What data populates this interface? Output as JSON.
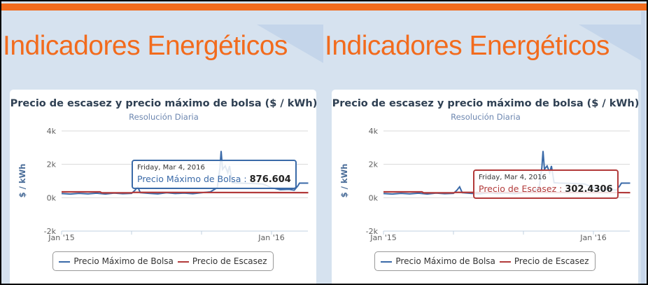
{
  "page": {
    "heading": "Indicadores Energéticos",
    "accent": "#f26b1d"
  },
  "chart_data": [
    {
      "type": "line",
      "title": "Precio de escasez y precio máximo de bolsa ($ / kWh)",
      "subtitle": "Resolución Diaria",
      "ylabel": "$ / kWh",
      "ylim": [
        -2000,
        4000
      ],
      "yticks": [
        "4k",
        "2k",
        "0k",
        "-2k"
      ],
      "xticks": [
        "Jan '15",
        "Jan '16"
      ],
      "x_unit": "months since Jan 2015",
      "series": [
        {
          "name": "Precio Máximo de Bolsa",
          "color": "#3a6aa8",
          "x": [
            0,
            0.5,
            1,
            1.5,
            2,
            2.5,
            3,
            3.5,
            4,
            4.2,
            4.35,
            4.5,
            5,
            5.5,
            6,
            6.5,
            7,
            7.5,
            8,
            8.5,
            8.9,
            9.05,
            9.12,
            9.2,
            9.35,
            9.5,
            9.6,
            9.75,
            10,
            10.5,
            11,
            11.5,
            12,
            12.5,
            13,
            13.3,
            13.5,
            13.6,
            14,
            14.1
          ],
          "y": [
            250,
            220,
            260,
            230,
            270,
            220,
            280,
            240,
            260,
            450,
            650,
            300,
            260,
            230,
            300,
            250,
            280,
            240,
            300,
            350,
            600,
            1800,
            2800,
            1700,
            1900,
            1500,
            1900,
            900,
            880,
            860,
            850,
            820,
            600,
            480,
            500,
            450,
            700,
            876,
            876,
            876
          ]
        },
        {
          "name": "Precio de Escasez",
          "color": "#b23a3a",
          "x": [
            0,
            2.2,
            2.3,
            4,
            4.1,
            14.1
          ],
          "y": [
            350,
            350,
            290,
            290,
            320,
            302.4306
          ]
        }
      ],
      "tooltip": {
        "date": "Friday, Mar 4, 2016",
        "series": "Precio Máximo de Bolsa",
        "value": "876.604",
        "color": "#3a6aa8"
      },
      "legend": "bottom-center"
    },
    {
      "type": "line",
      "title": "Precio de escasez y precio máximo de bolsa ($ / kWh)",
      "subtitle": "Resolución Diaria",
      "ylabel": "$ / kWh",
      "ylim": [
        -2000,
        4000
      ],
      "yticks": [
        "4k",
        "2k",
        "0k",
        "-2k"
      ],
      "xticks": [
        "Jan '15",
        "Jan '16"
      ],
      "x_unit": "months since Jan 2015",
      "series": [
        {
          "name": "Precio Máximo de Bolsa",
          "color": "#3a6aa8",
          "x": [
            0,
            0.5,
            1,
            1.5,
            2,
            2.5,
            3,
            3.5,
            4,
            4.2,
            4.35,
            4.5,
            5,
            5.5,
            6,
            6.5,
            7,
            7.5,
            8,
            8.5,
            8.9,
            9.05,
            9.12,
            9.2,
            9.35,
            9.5,
            9.6,
            9.75,
            10,
            10.5,
            11,
            11.5,
            12,
            12.5,
            13,
            13.3,
            13.5,
            13.6,
            14,
            14.1
          ],
          "y": [
            250,
            220,
            260,
            230,
            270,
            220,
            280,
            240,
            260,
            450,
            650,
            300,
            260,
            230,
            300,
            250,
            280,
            240,
            300,
            350,
            600,
            1800,
            2800,
            1700,
            1900,
            1500,
            1900,
            900,
            880,
            860,
            850,
            820,
            600,
            480,
            500,
            450,
            700,
            876,
            876,
            876
          ]
        },
        {
          "name": "Precio de Escasez",
          "color": "#b23a3a",
          "x": [
            0,
            2.2,
            2.3,
            4,
            4.1,
            14.1
          ],
          "y": [
            350,
            350,
            290,
            290,
            320,
            302.4306
          ]
        }
      ],
      "tooltip": {
        "date": "Friday, Mar 4, 2016",
        "series": "Precio de Escasez",
        "value": "302.4306",
        "color": "#b23a3a"
      },
      "legend": "bottom-center"
    }
  ]
}
